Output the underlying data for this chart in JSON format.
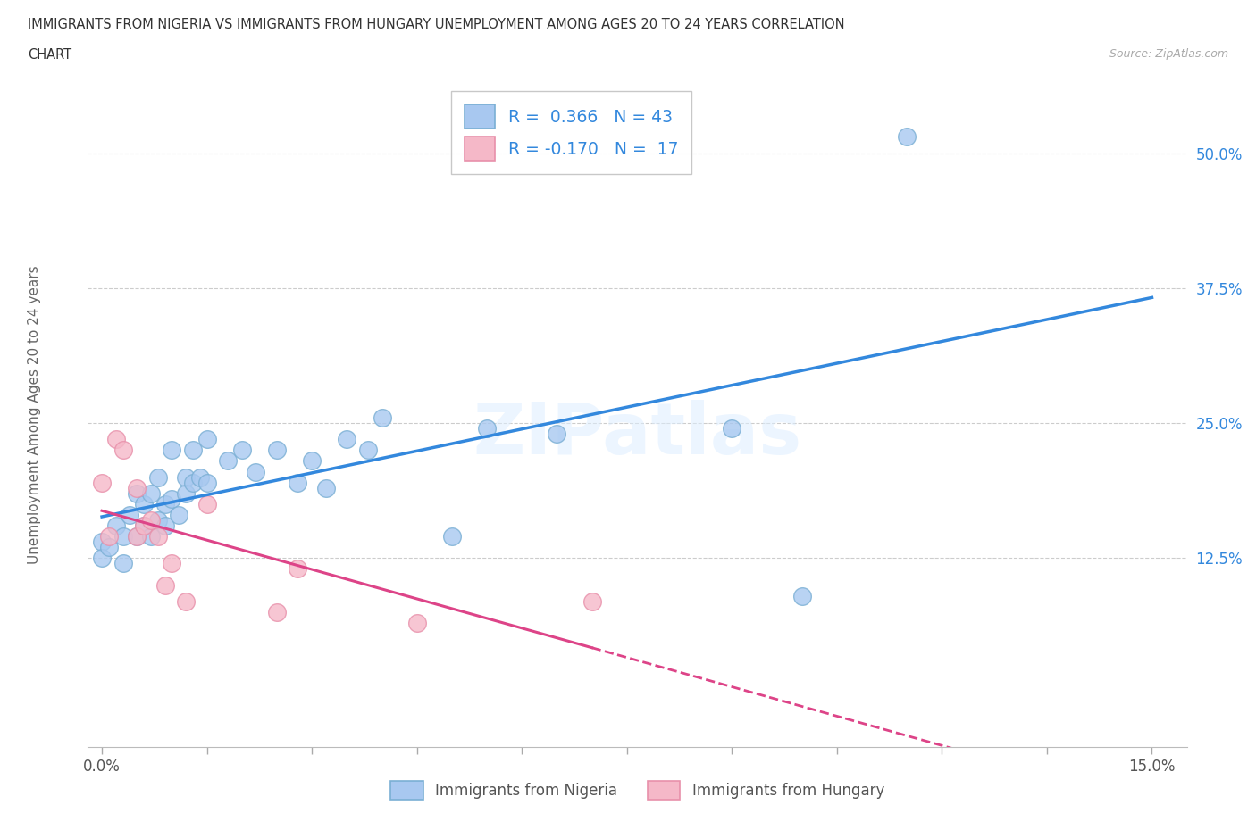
{
  "title_line1": "IMMIGRANTS FROM NIGERIA VS IMMIGRANTS FROM HUNGARY UNEMPLOYMENT AMONG AGES 20 TO 24 YEARS CORRELATION",
  "title_line2": "CHART",
  "source_text": "Source: ZipAtlas.com",
  "ylabel": "Unemployment Among Ages 20 to 24 years",
  "xlim": [
    -0.002,
    0.155
  ],
  "ylim": [
    -0.05,
    0.565
  ],
  "xtick_positions": [
    0.0,
    0.015,
    0.03,
    0.045,
    0.06,
    0.075,
    0.09,
    0.105,
    0.12,
    0.135,
    0.15
  ],
  "xtick_labels_shown": [
    "0.0%",
    "15.0%"
  ],
  "ytick_positions": [
    0.125,
    0.25,
    0.375,
    0.5
  ],
  "ytick_labels": [
    "12.5%",
    "25.0%",
    "37.5%",
    "50.0%"
  ],
  "watermark": "ZIPatlas",
  "nigeria_color": "#a8c8f0",
  "hungary_color": "#f5b8c8",
  "nigeria_edge": "#7aafd4",
  "hungary_edge": "#e890aa",
  "trendline_nigeria_color": "#3388dd",
  "trendline_hungary_color": "#dd4488",
  "R_nigeria": 0.366,
  "N_nigeria": 43,
  "R_hungary": -0.17,
  "N_hungary": 17,
  "nigeria_label": "Immigrants from Nigeria",
  "hungary_label": "Immigrants from Hungary",
  "background_color": "#ffffff",
  "grid_color": "#cccccc",
  "nigeria_x": [
    0.0,
    0.0,
    0.001,
    0.002,
    0.003,
    0.003,
    0.004,
    0.005,
    0.005,
    0.006,
    0.006,
    0.007,
    0.007,
    0.008,
    0.008,
    0.009,
    0.009,
    0.01,
    0.01,
    0.011,
    0.012,
    0.012,
    0.013,
    0.013,
    0.014,
    0.015,
    0.015,
    0.018,
    0.02,
    0.022,
    0.025,
    0.028,
    0.03,
    0.032,
    0.035,
    0.038,
    0.04,
    0.05,
    0.055,
    0.065,
    0.09,
    0.1,
    0.115
  ],
  "nigeria_y": [
    0.14,
    0.125,
    0.135,
    0.155,
    0.12,
    0.145,
    0.165,
    0.145,
    0.185,
    0.155,
    0.175,
    0.145,
    0.185,
    0.2,
    0.16,
    0.155,
    0.175,
    0.225,
    0.18,
    0.165,
    0.2,
    0.185,
    0.195,
    0.225,
    0.2,
    0.235,
    0.195,
    0.215,
    0.225,
    0.205,
    0.225,
    0.195,
    0.215,
    0.19,
    0.235,
    0.225,
    0.255,
    0.145,
    0.245,
    0.24,
    0.245,
    0.09,
    0.515
  ],
  "hungary_x": [
    0.0,
    0.001,
    0.002,
    0.003,
    0.005,
    0.005,
    0.006,
    0.007,
    0.008,
    0.009,
    0.01,
    0.012,
    0.015,
    0.025,
    0.028,
    0.045,
    0.07
  ],
  "hungary_y": [
    0.195,
    0.145,
    0.235,
    0.225,
    0.145,
    0.19,
    0.155,
    0.16,
    0.145,
    0.1,
    0.12,
    0.085,
    0.175,
    0.075,
    0.115,
    0.065,
    0.085
  ]
}
